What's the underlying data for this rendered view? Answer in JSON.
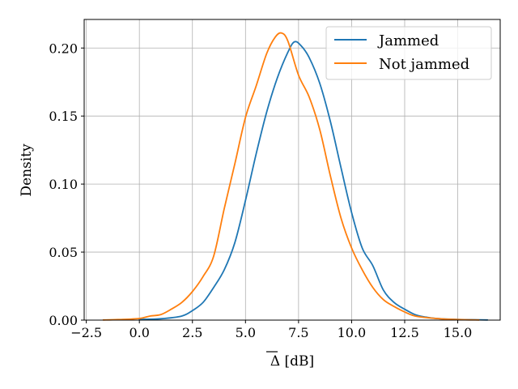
{
  "chart_data": {
    "type": "line",
    "title": "",
    "xlabel": "Δ [dB]",
    "ylabel": "Density",
    "xlim": [
      -2.6,
      17.0
    ],
    "ylim": [
      0,
      0.221
    ],
    "x_ticks": [
      -2.5,
      0.0,
      2.5,
      5.0,
      7.5,
      10.0,
      12.5,
      15.0
    ],
    "x_tick_labels": [
      "−2.5",
      "0.0",
      "2.5",
      "5.0",
      "7.5",
      "10.0",
      "12.5",
      "15.0"
    ],
    "y_ticks": [
      0.0,
      0.05,
      0.1,
      0.15,
      0.2
    ],
    "y_tick_labels": [
      "0.00",
      "0.05",
      "0.10",
      "0.15",
      "0.20"
    ],
    "grid": true,
    "legend_position": "top-right",
    "series": [
      {
        "name": "Jammed",
        "color": "#1f77b4",
        "x": [
          0.0,
          1.0,
          2.0,
          2.5,
          3.0,
          3.5,
          4.0,
          4.5,
          5.0,
          5.5,
          6.0,
          6.5,
          7.0,
          7.3,
          7.6,
          8.0,
          8.5,
          9.0,
          9.5,
          10.0,
          10.5,
          11.0,
          11.5,
          12.0,
          12.5,
          13.0,
          13.5,
          14.0,
          15.0,
          16.0,
          16.4
        ],
        "y": [
          0.0005,
          0.001,
          0.003,
          0.007,
          0.013,
          0.024,
          0.037,
          0.057,
          0.088,
          0.122,
          0.153,
          0.178,
          0.197,
          0.2045,
          0.202,
          0.193,
          0.174,
          0.146,
          0.112,
          0.079,
          0.053,
          0.04,
          0.022,
          0.013,
          0.008,
          0.004,
          0.0022,
          0.0012,
          0.0005,
          0.0002,
          0.0001
        ]
      },
      {
        "name": "Not jammed",
        "color": "#ff7f0e",
        "x": [
          -1.7,
          -1.0,
          0.0,
          0.5,
          1.0,
          1.5,
          2.0,
          2.5,
          3.0,
          3.5,
          4.0,
          4.5,
          5.0,
          5.5,
          6.0,
          6.4,
          6.7,
          7.0,
          7.5,
          8.0,
          8.5,
          9.0,
          9.5,
          10.0,
          10.5,
          11.0,
          11.5,
          12.0,
          12.5,
          13.0,
          14.0,
          15.0,
          16.0
        ],
        "y": [
          0.0001,
          0.0004,
          0.0012,
          0.003,
          0.004,
          0.008,
          0.013,
          0.021,
          0.032,
          0.047,
          0.082,
          0.115,
          0.149,
          0.172,
          0.196,
          0.208,
          0.211,
          0.205,
          0.18,
          0.164,
          0.14,
          0.106,
          0.075,
          0.053,
          0.037,
          0.024,
          0.015,
          0.01,
          0.006,
          0.003,
          0.0012,
          0.0004,
          0.0001
        ]
      }
    ]
  }
}
